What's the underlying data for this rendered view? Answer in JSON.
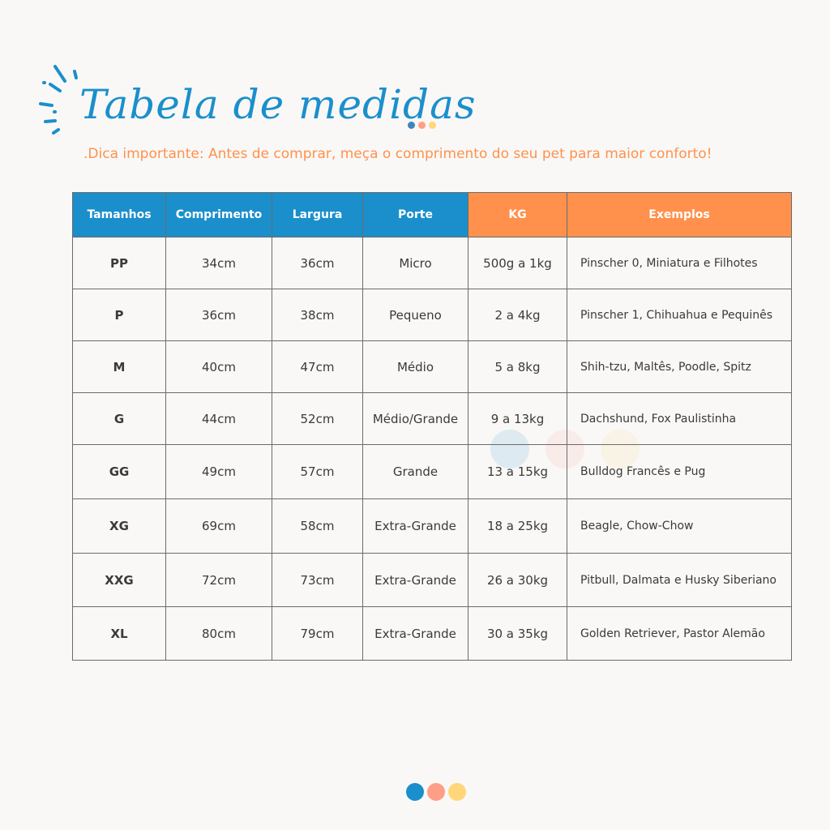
{
  "header": {
    "title": "Tabela de medidas",
    "tip": ".Dica importante: Antes de comprar, meça o comprimento do seu pet para maior conforto!"
  },
  "colors": {
    "blue": "#1b8fcc",
    "orange": "#ff914d",
    "salmon": "#ff9e87",
    "yellow": "#ffd77a"
  },
  "table": {
    "headers": [
      "Tamanhos",
      "Comprimento",
      "Largura",
      "Porte",
      "KG",
      "Exemplos"
    ],
    "rows": [
      [
        "PP",
        "34cm",
        "36cm",
        "Micro",
        "500g a 1kg",
        "Pinscher 0, Miniatura e Filhotes"
      ],
      [
        "P",
        "36cm",
        "38cm",
        "Pequeno",
        "2 a 4kg",
        "Pinscher 1, Chihuahua e Pequinês"
      ],
      [
        "M",
        "40cm",
        "47cm",
        "Médio",
        "5 a 8kg",
        "Shih-tzu, Maltês, Poodle, Spitz"
      ],
      [
        "G",
        "44cm",
        "52cm",
        "Médio/Grande",
        "9 a 13kg",
        "Dachshund, Fox Paulistinha"
      ],
      [
        "GG",
        "49cm",
        "57cm",
        "Grande",
        "13 a 15kg",
        "Bulldog Francês e Pug"
      ],
      [
        "XG",
        "69cm",
        "58cm",
        "Extra-Grande",
        "18 a 25kg",
        "Beagle, Chow-Chow"
      ],
      [
        "XXG",
        "72cm",
        "73cm",
        "Extra-Grande",
        "26 a 30kg",
        "Pitbull, Dalmata e Husky Siberiano"
      ],
      [
        "XL",
        "80cm",
        "79cm",
        "Extra-Grande",
        "30 a 35kg",
        "Golden Retriever, Pastor Alemão"
      ]
    ]
  }
}
